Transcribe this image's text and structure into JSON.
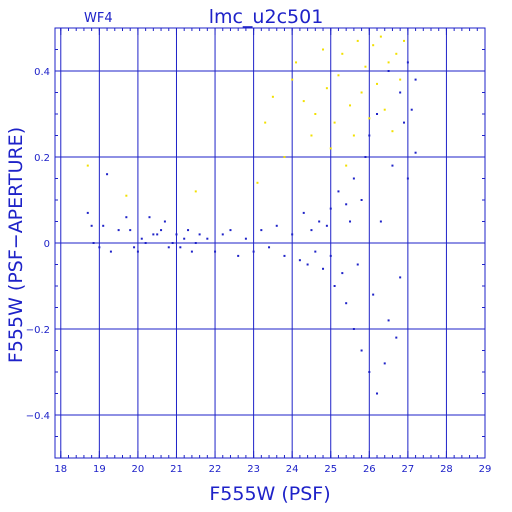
{
  "chart_data": {
    "type": "scatter",
    "panel_label": "WF4",
    "title": "lmc_u2c501",
    "xlabel": "F555W (PSF)",
    "ylabel": "F555W (PSF−APERTURE)",
    "xlim": [
      17.85,
      29.0
    ],
    "ylim": [
      -0.5,
      0.5
    ],
    "x_ticks": [
      "18",
      "19",
      "20",
      "21",
      "22",
      "23",
      "24",
      "25",
      "26",
      "27",
      "28",
      "29"
    ],
    "y_ticks": [
      "−0.4",
      "−0.2",
      "0",
      "0.2",
      "0.4"
    ],
    "grid": true,
    "colors": {
      "frame": "#1e22c8",
      "primary": "#1e22c8",
      "rejected": "#f2e000"
    },
    "series": [
      {
        "color": "#1e22c8",
        "points": [
          [
            18.7,
            0.07
          ],
          [
            18.8,
            0.04
          ],
          [
            18.85,
            0.0
          ],
          [
            19.0,
            -0.01
          ],
          [
            19.1,
            0.04
          ],
          [
            19.2,
            0.16
          ],
          [
            19.3,
            -0.02
          ],
          [
            19.5,
            0.03
          ],
          [
            19.7,
            0.06
          ],
          [
            19.8,
            0.03
          ],
          [
            19.9,
            -0.01
          ],
          [
            20.0,
            -0.02
          ],
          [
            20.1,
            0.01
          ],
          [
            20.2,
            0.0
          ],
          [
            20.3,
            0.06
          ],
          [
            20.4,
            0.02
          ],
          [
            20.5,
            0.02
          ],
          [
            20.6,
            0.03
          ],
          [
            20.7,
            0.05
          ],
          [
            20.8,
            -0.01
          ],
          [
            20.9,
            0.0
          ],
          [
            21.0,
            0.02
          ],
          [
            21.1,
            -0.01
          ],
          [
            21.2,
            0.01
          ],
          [
            21.3,
            0.03
          ],
          [
            21.4,
            -0.02
          ],
          [
            21.5,
            0.0
          ],
          [
            21.6,
            0.02
          ],
          [
            21.8,
            0.01
          ],
          [
            22.0,
            -0.02
          ],
          [
            22.2,
            0.02
          ],
          [
            22.4,
            0.03
          ],
          [
            22.6,
            -0.03
          ],
          [
            22.8,
            0.01
          ],
          [
            23.0,
            -0.02
          ],
          [
            23.2,
            0.03
          ],
          [
            23.4,
            -0.01
          ],
          [
            23.6,
            0.04
          ],
          [
            23.8,
            -0.03
          ],
          [
            24.0,
            0.02
          ],
          [
            24.2,
            -0.04
          ],
          [
            24.3,
            0.07
          ],
          [
            24.4,
            -0.05
          ],
          [
            24.5,
            0.03
          ],
          [
            24.6,
            -0.02
          ],
          [
            24.7,
            0.05
          ],
          [
            24.8,
            -0.06
          ],
          [
            24.9,
            0.04
          ],
          [
            25.0,
            -0.03
          ],
          [
            25.0,
            0.08
          ],
          [
            25.1,
            -0.1
          ],
          [
            25.2,
            0.12
          ],
          [
            25.3,
            -0.07
          ],
          [
            25.4,
            0.09
          ],
          [
            25.4,
            -0.14
          ],
          [
            25.5,
            0.05
          ],
          [
            25.6,
            -0.2
          ],
          [
            25.6,
            0.15
          ],
          [
            25.7,
            -0.05
          ],
          [
            25.8,
            0.1
          ],
          [
            25.8,
            -0.25
          ],
          [
            25.9,
            0.2
          ],
          [
            26.0,
            -0.3
          ],
          [
            26.0,
            0.25
          ],
          [
            26.1,
            -0.12
          ],
          [
            26.2,
            0.3
          ],
          [
            26.2,
            -0.35
          ],
          [
            26.3,
            0.05
          ],
          [
            26.4,
            -0.28
          ],
          [
            26.5,
            0.4
          ],
          [
            26.5,
            -0.18
          ],
          [
            26.6,
            0.18
          ],
          [
            26.7,
            -0.22
          ],
          [
            26.8,
            0.35
          ],
          [
            26.8,
            -0.08
          ],
          [
            26.9,
            0.28
          ],
          [
            27.0,
            0.42
          ],
          [
            27.0,
            0.15
          ],
          [
            27.1,
            0.31
          ],
          [
            27.2,
            0.38
          ],
          [
            27.2,
            0.21
          ]
        ]
      },
      {
        "color": "#f2e000",
        "points": [
          [
            18.7,
            0.18
          ],
          [
            19.7,
            0.11
          ],
          [
            21.5,
            0.12
          ],
          [
            23.1,
            0.14
          ],
          [
            23.3,
            0.28
          ],
          [
            23.5,
            0.34
          ],
          [
            23.8,
            0.2
          ],
          [
            24.0,
            0.38
          ],
          [
            24.1,
            0.42
          ],
          [
            24.3,
            0.33
          ],
          [
            24.5,
            0.25
          ],
          [
            24.6,
            0.3
          ],
          [
            24.8,
            0.45
          ],
          [
            24.9,
            0.36
          ],
          [
            25.0,
            0.22
          ],
          [
            25.1,
            0.28
          ],
          [
            25.2,
            0.39
          ],
          [
            25.3,
            0.44
          ],
          [
            25.4,
            0.18
          ],
          [
            25.5,
            0.32
          ],
          [
            25.6,
            0.25
          ],
          [
            25.7,
            0.47
          ],
          [
            25.8,
            0.35
          ],
          [
            25.9,
            0.41
          ],
          [
            26.0,
            0.29
          ],
          [
            26.1,
            0.46
          ],
          [
            26.2,
            0.37
          ],
          [
            26.3,
            0.48
          ],
          [
            26.4,
            0.31
          ],
          [
            26.5,
            0.42
          ],
          [
            26.6,
            0.26
          ],
          [
            26.7,
            0.44
          ],
          [
            26.8,
            0.38
          ],
          [
            26.9,
            0.47
          ]
        ]
      }
    ]
  }
}
